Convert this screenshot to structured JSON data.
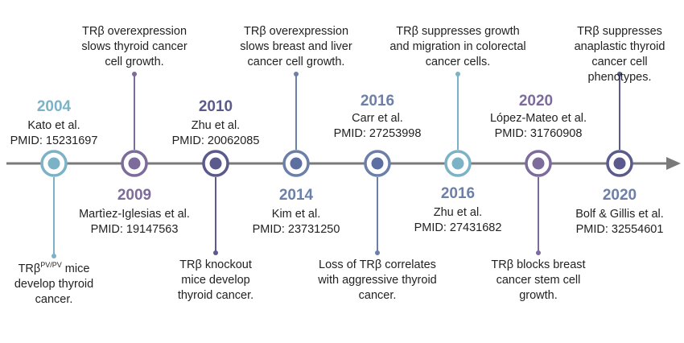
{
  "events": [
    {
      "year": "2004",
      "ref": "Kato et al.",
      "pmid": "PMID: 15231697",
      "finding_pre": "TRβ",
      "finding_sup": "PV/PV",
      "finding_post": " mice develop thyroid cancer.",
      "color": "#7cb2c6"
    },
    {
      "year": "2009",
      "ref": "Martìez-Iglesias et al.",
      "pmid": "PMID: 19147563",
      "finding": "TRβ overexpression slows breast and liver cancer cell growth.",
      "color": "#7c6b9b"
    },
    {
      "year": "2010",
      "ref": "Zhu et al.",
      "pmid": "PMID: 20062085",
      "finding": "TRβ knockout mice develop thyroid cancer.",
      "color": "#5a5a8c"
    },
    {
      "year": "2014",
      "ref": "Kim et al.",
      "pmid": "PMID: 23731250",
      "finding": "TRβ overexpression slows thyroid cancer cell growth.",
      "color": "#6c7fa8"
    },
    {
      "year": "2016",
      "ref": "Carr et al.",
      "pmid": "PMID: 27253998",
      "finding": "Loss of TRβ correlates with aggressive thyroid cancer.",
      "color": "#6c7fa8"
    },
    {
      "year": "2016",
      "ref": "Zhu et al.",
      "pmid": "PMID: 27431682",
      "finding": "TRβ suppresses growth and migration in colorectal cancer cells.",
      "color": "#7cb2c6"
    },
    {
      "year": "2020",
      "ref": "López-Mateo  et al.",
      "pmid": "PMID: 31760908",
      "finding": "TRβ blocks breast cancer stem cell growth.",
      "color": "#7c6b9b"
    },
    {
      "year": "2020",
      "ref": "Bolf & Gillis et al.",
      "pmid": "PMID: 32554601",
      "finding": "TRβ suppresses anaplastic thyroid cancer cell phenotypes.",
      "color": "#5a5a8c"
    }
  ],
  "colors": {
    "axis": "#7a7a7a",
    "teal": "#7cb2c6",
    "purple": "#7c6b9b",
    "indigo": "#5a5a8c",
    "blue": "#6c7fa8"
  }
}
